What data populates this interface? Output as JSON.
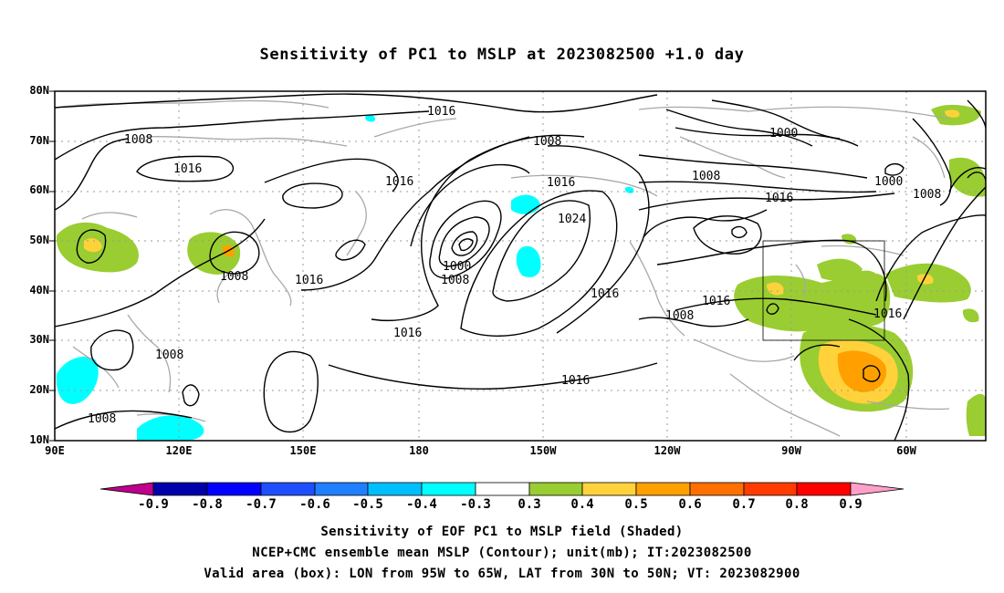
{
  "title": "Sensitivity of PC1 to MSLP at 2023082500 +1.0 day",
  "lat_labels": [
    "80N",
    "70N",
    "60N",
    "50N",
    "40N",
    "30N",
    "20N",
    "10N"
  ],
  "lon_labels": [
    "90E",
    "120E",
    "150E",
    "180",
    "150W",
    "120W",
    "90W",
    "60W"
  ],
  "isobar_labels": [
    "1016",
    "1008",
    "1016",
    "1008",
    "1016",
    "1016",
    "1000",
    "1008",
    "1024",
    "1016",
    "1008",
    "1000",
    "1008",
    "1016",
    "1016",
    "1016",
    "1008",
    "1016",
    "1016",
    "1008",
    "1008"
  ],
  "colorbar": {
    "labels": [
      "-0.9",
      "-0.8",
      "-0.7",
      "-0.6",
      "-0.5",
      "-0.4",
      "-0.3",
      "0.3",
      "0.4",
      "0.5",
      "0.6",
      "0.7",
      "0.8",
      "0.9"
    ],
    "colors": [
      "#0000aa",
      "#0000ff",
      "#1e4fff",
      "#1f7fff",
      "#00bfff",
      "#00ffff",
      "#ffffff",
      "#9acd32",
      "#ffd23c",
      "#ffa000",
      "#ff7000",
      "#ff3c00",
      "#ff0000"
    ],
    "left_tip": "#c0008c",
    "right_tip": "#ffa0c8"
  },
  "valid_box": {
    "lon_from": "95W",
    "lon_to": "65W",
    "lat_from": "30N",
    "lat_to": "50N"
  },
  "footer": {
    "line1": "Sensitivity of EOF PC1 to MSLP field (Shaded)",
    "line2": "NCEP+CMC ensemble mean MSLP (Contour); unit(mb); IT:2023082500",
    "line3": "Valid area (box): LON from 95W to 65W, LAT from 30N to 50N; VT: 2023082900"
  }
}
